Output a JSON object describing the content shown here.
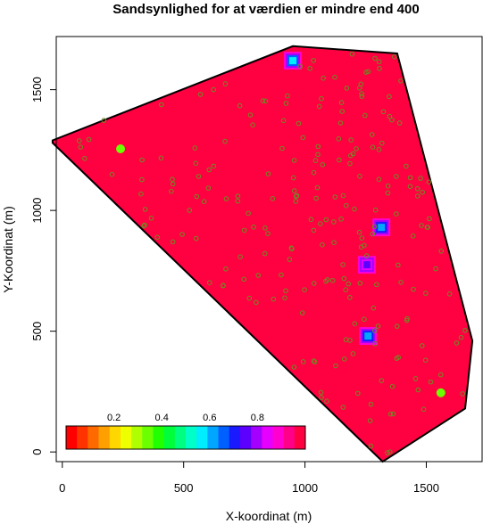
{
  "chart_data": {
    "type": "heatmap",
    "title": "Sandsynlighed for at værdien er mindre end 400",
    "xlabel": "X-koordinat (m)",
    "ylabel": "Y-Koordinat (m)",
    "xlim": [
      -25,
      1730
    ],
    "ylim": [
      -40,
      1720
    ],
    "x_ticks": [
      0,
      500,
      1000,
      1500
    ],
    "y_ticks": [
      0,
      500,
      1000,
      1500
    ],
    "grid": false,
    "region_polygon": [
      [
        -40,
        1290
      ],
      [
        950,
        1680
      ],
      [
        1380,
        1650
      ],
      [
        1690,
        460
      ],
      [
        1660,
        180
      ],
      [
        1320,
        -40
      ],
      [
        -40,
        1280
      ]
    ],
    "background_value": 0.97,
    "hotspots": [
      {
        "x": 950,
        "y": 1620,
        "value": 0.55
      },
      {
        "x": 1315,
        "y": 930,
        "value": 0.6
      },
      {
        "x": 1255,
        "y": 775,
        "value": 0.75
      },
      {
        "x": 1260,
        "y": 480,
        "value": 0.6
      }
    ],
    "green_hotspots": [
      {
        "x": 240,
        "y": 1255,
        "value": 0.35
      },
      {
        "x": 1560,
        "y": 245,
        "value": 0.35
      }
    ],
    "legend": {
      "placement": "bottom-left",
      "range": [
        0,
        1
      ],
      "tick_labels": [
        "0.2",
        "0.4",
        "0.6",
        "0.8"
      ],
      "tick_values": [
        0.2,
        0.4,
        0.6,
        0.8
      ],
      "colors": [
        "#ff0000",
        "#ff3300",
        "#ff6a00",
        "#ffa000",
        "#ffd700",
        "#eeff00",
        "#b0ff00",
        "#6bff00",
        "#22ff00",
        "#00ff3a",
        "#00ff80",
        "#00ffc8",
        "#00ecff",
        "#00a6ff",
        "#0060ff",
        "#1a1aff",
        "#5c00ff",
        "#a300ff",
        "#e600ff",
        "#ff00d0",
        "#ff0088",
        "#ff0040"
      ]
    },
    "point_color": "#6b8e23",
    "fill_color": "#ff0040"
  }
}
